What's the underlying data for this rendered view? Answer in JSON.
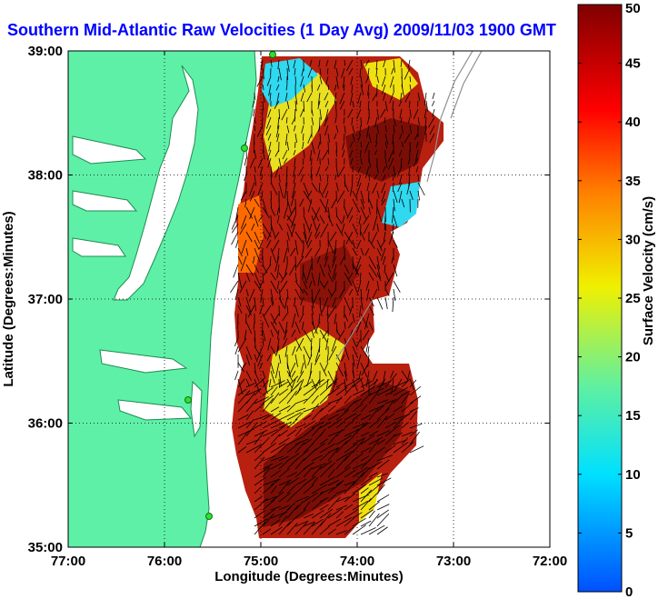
{
  "chart_data": {
    "type": "heatmap",
    "title": "Southern Mid-Atlantic Raw Velocities (1 Day Avg) 2009/11/03 1900 GMT",
    "xlabel": "Longitude (Degrees:Minutes)",
    "ylabel": "Latitude (Degrees:Minutes)",
    "colorbar_label": "Surface Velocity (cm/s)",
    "xlim": [
      -77,
      -72
    ],
    "ylim": [
      35,
      39
    ],
    "x_ticks": [
      {
        "value": -77,
        "label": "77:00"
      },
      {
        "value": -76,
        "label": "76:00"
      },
      {
        "value": -75,
        "label": "75:00"
      },
      {
        "value": -74,
        "label": "74:00"
      },
      {
        "value": -73,
        "label": "73:00"
      },
      {
        "value": -72,
        "label": "72:00"
      }
    ],
    "y_ticks": [
      {
        "value": 35,
        "label": "35:00"
      },
      {
        "value": 36,
        "label": "36:00"
      },
      {
        "value": 37,
        "label": "37:00"
      },
      {
        "value": 38,
        "label": "38:00"
      },
      {
        "value": 39,
        "label": "39:00"
      }
    ],
    "colorbar_range": [
      0,
      50
    ],
    "colorbar_ticks": [
      0,
      5,
      10,
      15,
      20,
      25,
      30,
      35,
      40,
      45,
      50
    ],
    "grid": true,
    "land_color": "#5ff0a8",
    "colormap": [
      "#0050ff",
      "#00e0ff",
      "#60f0a0",
      "#f0f000",
      "#ff8000",
      "#ff0000",
      "#800000"
    ],
    "data_summary": {
      "max_speed_region": "offshore band 36:20-38:20 N and south 35:00-36:30 N, 40-50 cm/s",
      "low_speed_region": "near 38:50 N 74:50 W and 37:40 N 73:30 W, 5-15 cm/s"
    }
  }
}
